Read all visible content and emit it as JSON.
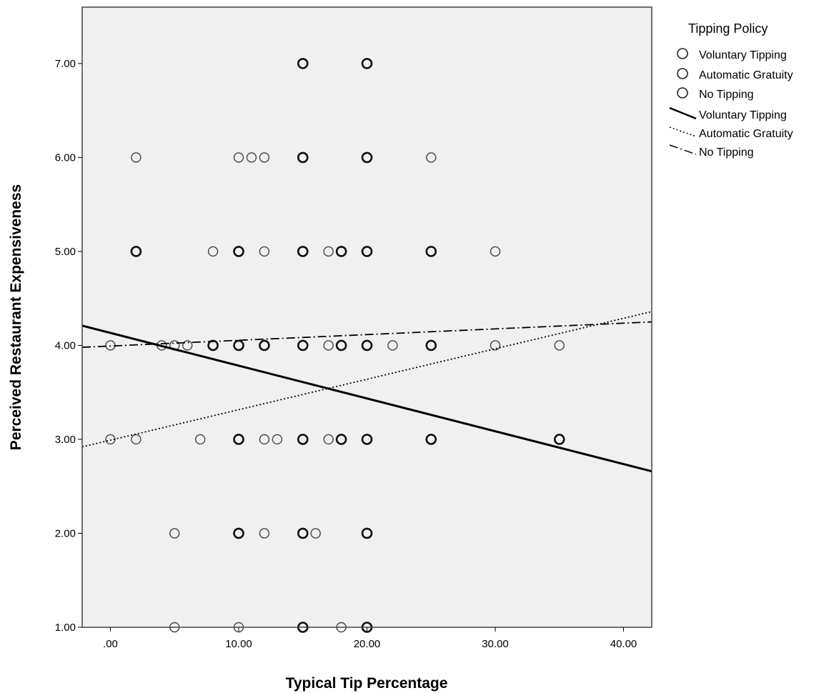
{
  "chart_data": {
    "type": "scatter",
    "xlabel": "Typical Tip Percentage",
    "ylabel": "Perceived Restaurant Expensiveness",
    "xlim": [
      -2.2,
      42.2
    ],
    "ylim": [
      1.0,
      7.6
    ],
    "x_ticks": [
      0,
      10,
      20,
      30,
      40
    ],
    "x_tick_labels": [
      ".00",
      "10.00",
      "20.00",
      "30.00",
      "40.00"
    ],
    "y_ticks": [
      1,
      2,
      3,
      4,
      5,
      6,
      7
    ],
    "y_tick_labels": [
      "1.00",
      "2.00",
      "3.00",
      "4.00",
      "5.00",
      "6.00",
      "7.00"
    ],
    "grid": false,
    "background": "#f0f0f0",
    "legend": {
      "title": "Tipping Policy",
      "position": "right",
      "marker_entries": [
        "Voluntary Tipping",
        "Automatic Gratuity",
        "No Tipping"
      ],
      "line_entries": [
        {
          "label": "Voluntary Tipping",
          "style": "solid"
        },
        {
          "label": "Automatic Gratuity",
          "style": "dotted"
        },
        {
          "label": "No Tipping",
          "style": "dashdot"
        }
      ]
    },
    "points": [
      {
        "x": 15,
        "y": 7,
        "bold": true
      },
      {
        "x": 20,
        "y": 7,
        "bold": true
      },
      {
        "x": 2,
        "y": 6
      },
      {
        "x": 10,
        "y": 6
      },
      {
        "x": 11,
        "y": 6
      },
      {
        "x": 12,
        "y": 6
      },
      {
        "x": 15,
        "y": 6,
        "bold": true
      },
      {
        "x": 20,
        "y": 6,
        "bold": true
      },
      {
        "x": 25,
        "y": 6
      },
      {
        "x": 2,
        "y": 5,
        "bold": true
      },
      {
        "x": 8,
        "y": 5
      },
      {
        "x": 10,
        "y": 5,
        "bold": true
      },
      {
        "x": 12,
        "y": 5
      },
      {
        "x": 15,
        "y": 5,
        "bold": true
      },
      {
        "x": 17,
        "y": 5
      },
      {
        "x": 18,
        "y": 5,
        "bold": true
      },
      {
        "x": 20,
        "y": 5,
        "bold": true
      },
      {
        "x": 25,
        "y": 5,
        "bold": true
      },
      {
        "x": 30,
        "y": 5
      },
      {
        "x": 0,
        "y": 4
      },
      {
        "x": 4,
        "y": 4
      },
      {
        "x": 5,
        "y": 4
      },
      {
        "x": 6,
        "y": 4
      },
      {
        "x": 8,
        "y": 4,
        "bold": true
      },
      {
        "x": 10,
        "y": 4,
        "bold": true
      },
      {
        "x": 12,
        "y": 4,
        "bold": true
      },
      {
        "x": 15,
        "y": 4,
        "bold": true
      },
      {
        "x": 17,
        "y": 4
      },
      {
        "x": 18,
        "y": 4,
        "bold": true
      },
      {
        "x": 20,
        "y": 4,
        "bold": true
      },
      {
        "x": 22,
        "y": 4
      },
      {
        "x": 25,
        "y": 4,
        "bold": true
      },
      {
        "x": 30,
        "y": 4
      },
      {
        "x": 35,
        "y": 4
      },
      {
        "x": 0,
        "y": 3
      },
      {
        "x": 2,
        "y": 3
      },
      {
        "x": 7,
        "y": 3
      },
      {
        "x": 10,
        "y": 3,
        "bold": true
      },
      {
        "x": 12,
        "y": 3
      },
      {
        "x": 13,
        "y": 3
      },
      {
        "x": 15,
        "y": 3,
        "bold": true
      },
      {
        "x": 17,
        "y": 3
      },
      {
        "x": 18,
        "y": 3,
        "bold": true
      },
      {
        "x": 20,
        "y": 3,
        "bold": true
      },
      {
        "x": 25,
        "y": 3,
        "bold": true
      },
      {
        "x": 35,
        "y": 3,
        "bold": true
      },
      {
        "x": 5,
        "y": 2
      },
      {
        "x": 10,
        "y": 2,
        "bold": true
      },
      {
        "x": 12,
        "y": 2
      },
      {
        "x": 15,
        "y": 2,
        "bold": true
      },
      {
        "x": 16,
        "y": 2
      },
      {
        "x": 20,
        "y": 2,
        "bold": true
      },
      {
        "x": 5,
        "y": 1
      },
      {
        "x": 10,
        "y": 1
      },
      {
        "x": 15,
        "y": 1,
        "bold": true
      },
      {
        "x": 18,
        "y": 1
      },
      {
        "x": 20,
        "y": 1,
        "bold": true
      }
    ],
    "fit_lines": [
      {
        "name": "Voluntary Tipping",
        "style": "solid",
        "x": [
          -2.2,
          42.2
        ],
        "y": [
          4.21,
          2.66
        ]
      },
      {
        "name": "Automatic Gratuity",
        "style": "dotted",
        "x": [
          -2.2,
          42.2
        ],
        "y": [
          2.92,
          4.36
        ]
      },
      {
        "name": "No Tipping",
        "style": "dashdot",
        "x": [
          -2.2,
          42.2
        ],
        "y": [
          3.98,
          4.25
        ]
      }
    ]
  }
}
